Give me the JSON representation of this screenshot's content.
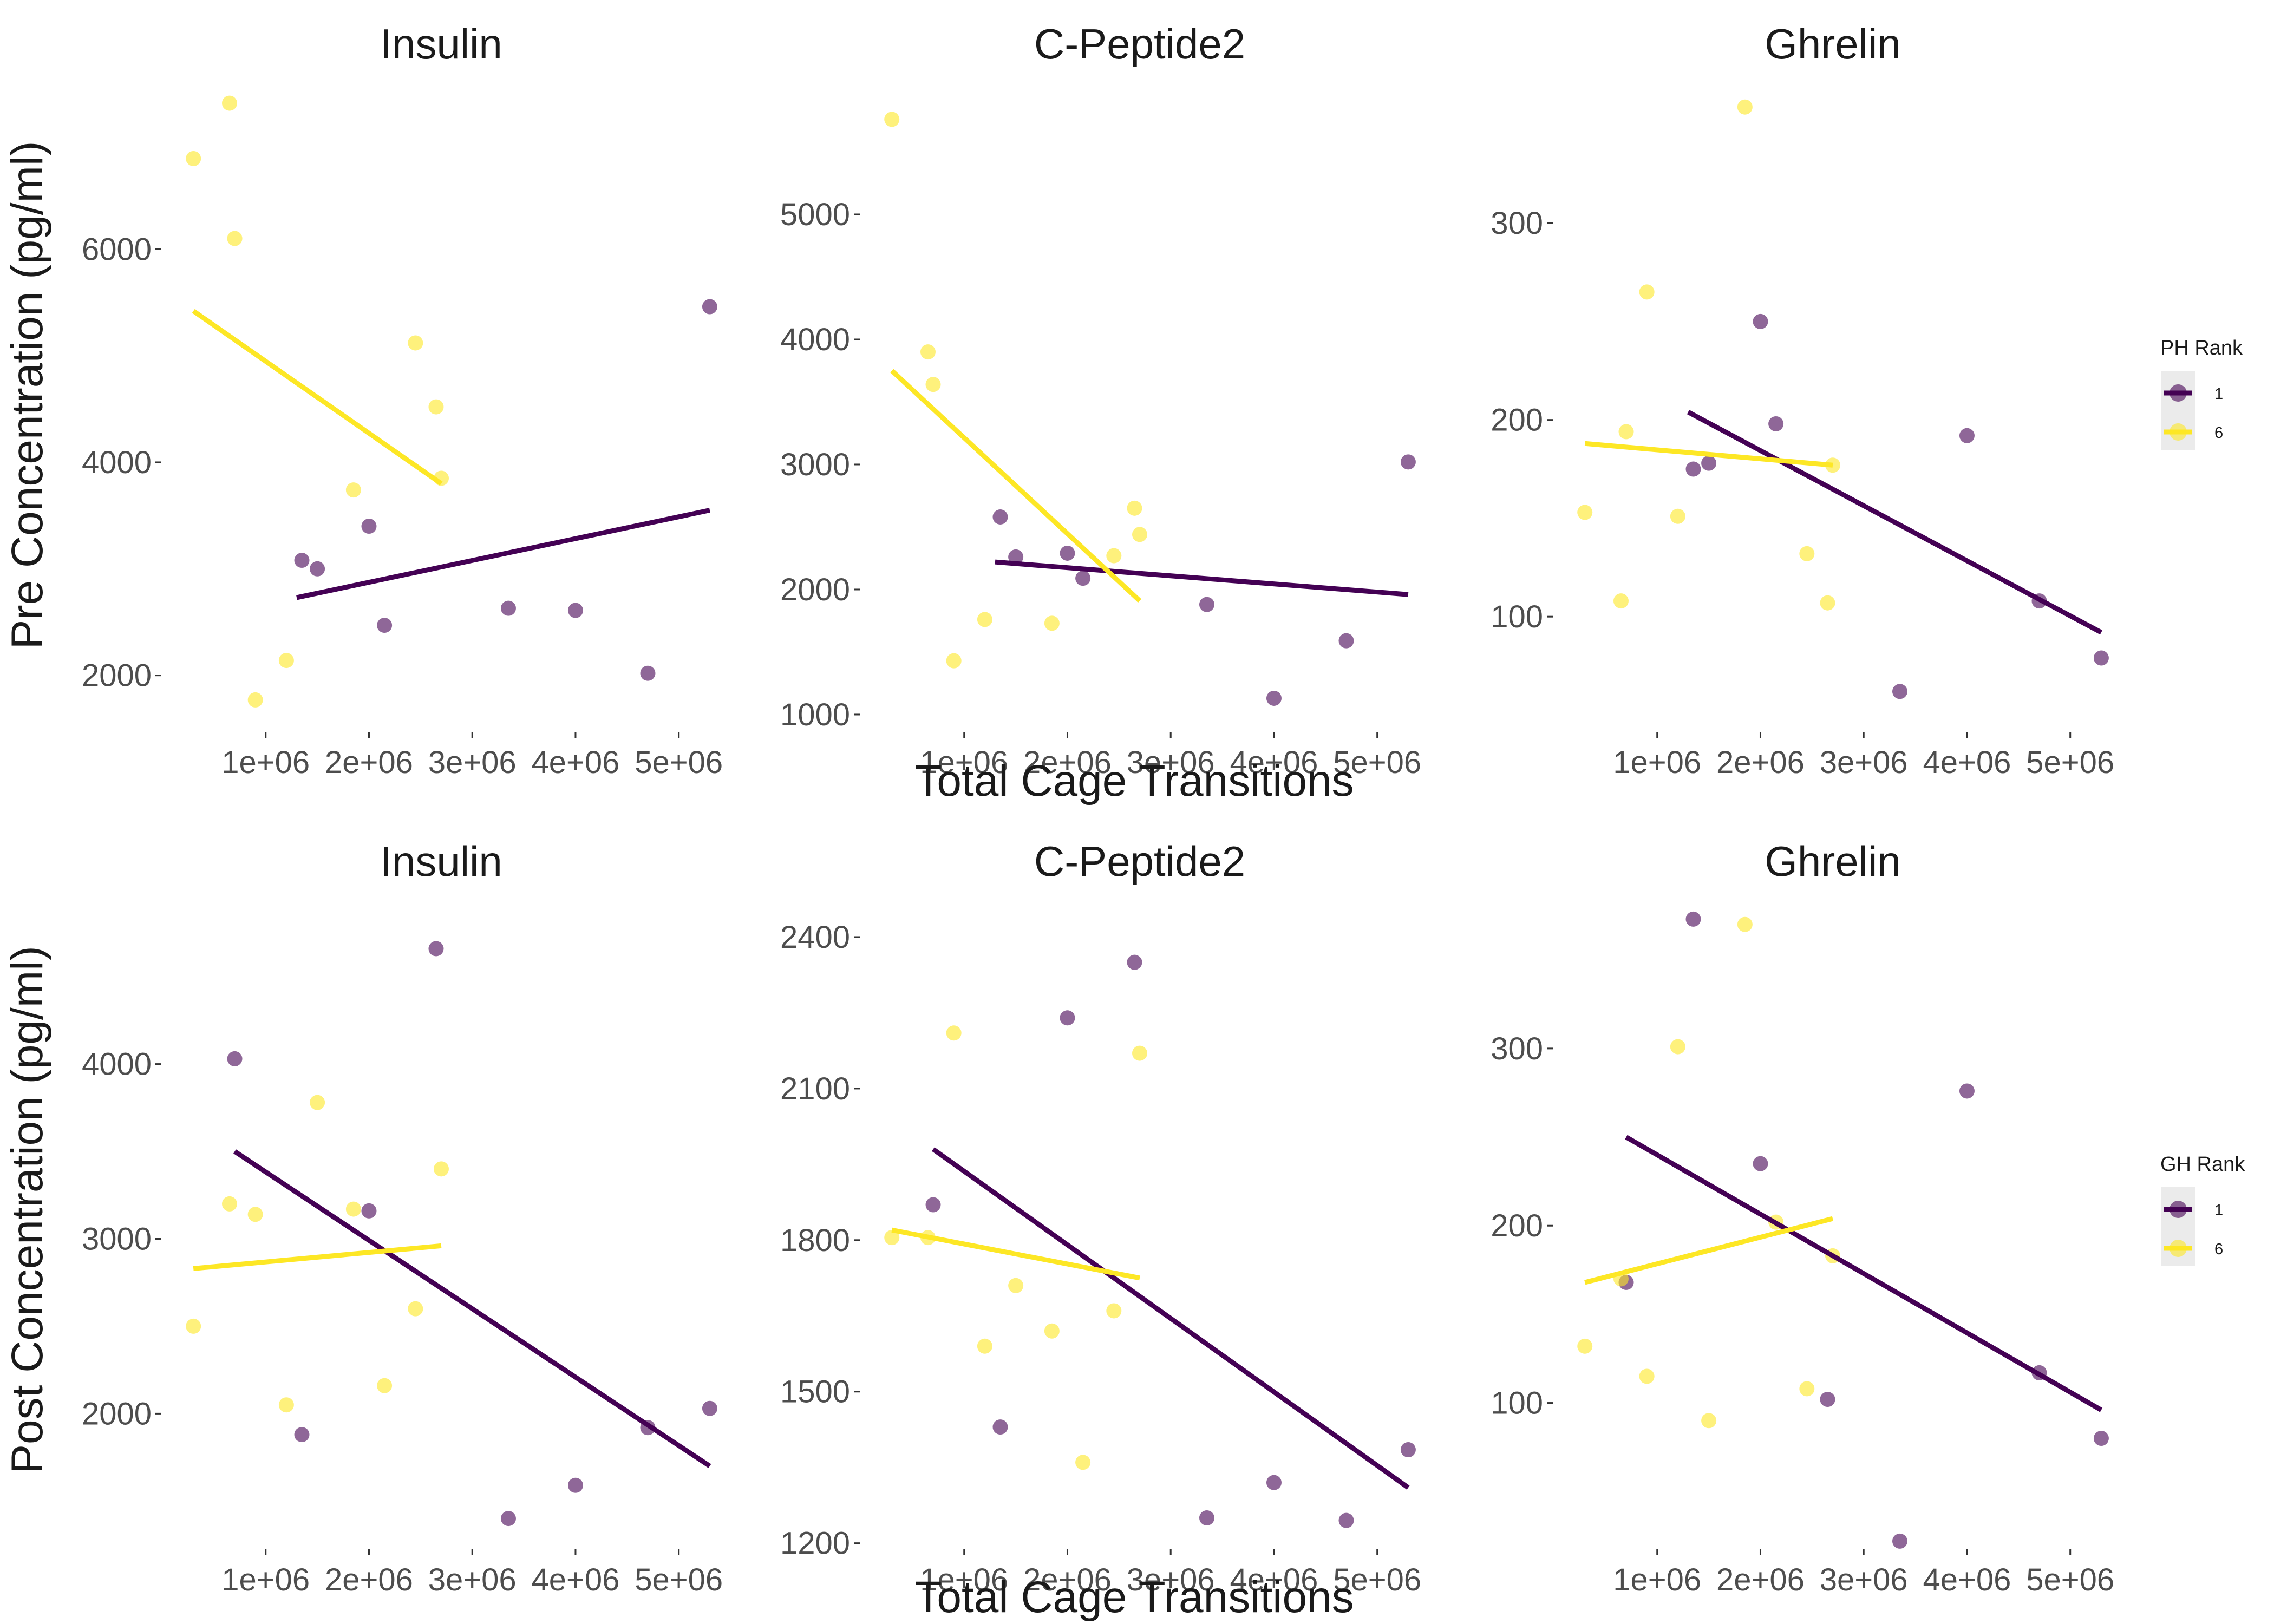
{
  "colors": {
    "rank_1": "#440154",
    "rank_6": "#FDE725"
  },
  "axis_labels": {
    "y_top": "Pre Concentration (pg/ml)",
    "y_bottom": "Post Concentration (pg/ml)",
    "x_top": "Total Cage Transitions",
    "x_bottom": "Total Cage Transitions"
  },
  "legends": [
    {
      "title": "PH Rank",
      "items": [
        {
          "label": "1",
          "color": "#440154"
        },
        {
          "label": "6",
          "color": "#FDE725"
        }
      ]
    },
    {
      "title": "GH Rank",
      "items": [
        {
          "label": "1",
          "color": "#440154"
        },
        {
          "label": "6",
          "color": "#FDE725"
        }
      ]
    }
  ],
  "chart_data": [
    {
      "type": "scatter",
      "title": "Insulin",
      "xlabel": "",
      "ylabel": "Pre Concentration (pg/ml)",
      "xlim": [
        0,
        5400000
      ],
      "ylim": [
        1480,
        7500
      ],
      "x_ticks": [
        1000000,
        2000000,
        3000000,
        4000000,
        5000000
      ],
      "x_tick_labels": [
        "1e+06",
        "2e+06",
        "3e+06",
        "4e+06",
        "5e+06"
      ],
      "y_ticks": [
        2000,
        4000,
        6000
      ],
      "y_tick_labels": [
        "2000",
        "4000",
        "6000"
      ],
      "legend_title": "PH Rank",
      "series": [
        {
          "name": "1",
          "color": "#440154",
          "points": [
            [
              1350000,
              3080
            ],
            [
              1500000,
              3000
            ],
            [
              2000000,
              3400
            ],
            [
              2150000,
              2470
            ],
            [
              3350000,
              2630
            ],
            [
              4000000,
              2610
            ],
            [
              4700000,
              2020
            ],
            [
              5300000,
              5460
            ]
          ],
          "trend": [
            [
              1300000,
              2730
            ],
            [
              5300000,
              3550
            ]
          ]
        },
        {
          "name": "6",
          "color": "#FDE725",
          "points": [
            [
              300000,
              6850
            ],
            [
              650000,
              7370
            ],
            [
              700000,
              6100
            ],
            [
              900000,
              1770
            ],
            [
              1200000,
              2140
            ],
            [
              1850000,
              3740
            ],
            [
              2450000,
              5120
            ],
            [
              2650000,
              4520
            ],
            [
              2700000,
              3850
            ]
          ],
          "trend": [
            [
              300000,
              5420
            ],
            [
              2700000,
              3800
            ]
          ]
        }
      ]
    },
    {
      "type": "scatter",
      "title": "C-Peptide2",
      "xlabel": "Total Cage Transitions",
      "ylabel": "",
      "xlim": [
        0,
        5400000
      ],
      "ylim": [
        870,
        6000
      ],
      "x_ticks": [
        1000000,
        2000000,
        3000000,
        4000000,
        5000000
      ],
      "x_tick_labels": [
        "1e+06",
        "2e+06",
        "3e+06",
        "4e+06",
        "5e+06"
      ],
      "y_ticks": [
        1000,
        2000,
        3000,
        4000,
        5000
      ],
      "y_tick_labels": [
        "1000",
        "2000",
        "3000",
        "4000",
        "5000"
      ],
      "legend_title": "PH Rank",
      "series": [
        {
          "name": "1",
          "color": "#440154",
          "points": [
            [
              1350000,
              2580
            ],
            [
              1500000,
              2260
            ],
            [
              2000000,
              2290
            ],
            [
              2150000,
              2090
            ],
            [
              3350000,
              1880
            ],
            [
              4000000,
              1130
            ],
            [
              4700000,
              1590
            ],
            [
              5300000,
              3020
            ]
          ],
          "trend": [
            [
              1300000,
              2220
            ],
            [
              5300000,
              1960
            ]
          ]
        },
        {
          "name": "6",
          "color": "#FDE725",
          "points": [
            [
              300000,
              5760
            ],
            [
              650000,
              3900
            ],
            [
              700000,
              3640
            ],
            [
              900000,
              1430
            ],
            [
              1200000,
              1760
            ],
            [
              1850000,
              1730
            ],
            [
              2450000,
              2270
            ],
            [
              2650000,
              2650
            ],
            [
              2700000,
              2440
            ]
          ],
          "trend": [
            [
              300000,
              3750
            ],
            [
              2700000,
              1910
            ]
          ]
        }
      ]
    },
    {
      "type": "scatter",
      "title": "Ghrelin",
      "xlabel": "",
      "ylabel": "",
      "xlim": [
        0,
        5400000
      ],
      "ylim": [
        42,
        368
      ],
      "x_ticks": [
        1000000,
        2000000,
        3000000,
        4000000,
        5000000
      ],
      "x_tick_labels": [
        "1e+06",
        "2e+06",
        "3e+06",
        "4e+06",
        "5e+06"
      ],
      "y_ticks": [
        100,
        200,
        300
      ],
      "y_tick_labels": [
        "100",
        "200",
        "300"
      ],
      "legend_title": "PH Rank",
      "series": [
        {
          "name": "1",
          "color": "#440154",
          "points": [
            [
              1350000,
              175
            ],
            [
              1500000,
              178
            ],
            [
              2000000,
              250
            ],
            [
              2150000,
              198
            ],
            [
              3350000,
              62
            ],
            [
              4000000,
              192
            ],
            [
              4700000,
              108
            ],
            [
              5300000,
              79
            ]
          ],
          "trend": [
            [
              1300000,
              204
            ],
            [
              5300000,
              92
            ]
          ]
        },
        {
          "name": "6",
          "color": "#FDE725",
          "points": [
            [
              300000,
              153
            ],
            [
              650000,
              108
            ],
            [
              700000,
              194
            ],
            [
              900000,
              265
            ],
            [
              1200000,
              151
            ],
            [
              1850000,
              359
            ],
            [
              2450000,
              132
            ],
            [
              2650000,
              107
            ],
            [
              2700000,
              177
            ]
          ],
          "trend": [
            [
              300000,
              188
            ],
            [
              2700000,
              177
            ]
          ]
        }
      ]
    },
    {
      "type": "scatter",
      "title": "Insulin",
      "xlabel": "",
      "ylabel": "Post Concentration (pg/ml)",
      "xlim": [
        0,
        5400000
      ],
      "ylim": [
        1230,
        4900
      ],
      "x_ticks": [
        1000000,
        2000000,
        3000000,
        4000000,
        5000000
      ],
      "x_tick_labels": [
        "1e+06",
        "2e+06",
        "3e+06",
        "4e+06",
        "5e+06"
      ],
      "y_ticks": [
        2000,
        3000,
        4000
      ],
      "y_tick_labels": [
        "2000",
        "3000",
        "4000"
      ],
      "legend_title": "GH Rank",
      "series": [
        {
          "name": "1",
          "color": "#440154",
          "points": [
            [
              700000,
              4030
            ],
            [
              1350000,
              1880
            ],
            [
              2000000,
              3160
            ],
            [
              2650000,
              4660
            ],
            [
              3350000,
              1400
            ],
            [
              4000000,
              1590
            ],
            [
              4700000,
              1920
            ],
            [
              5300000,
              2030
            ]
          ],
          "trend": [
            [
              700000,
              3500
            ],
            [
              5300000,
              1700
            ]
          ]
        },
        {
          "name": "6",
          "color": "#FDE725",
          "points": [
            [
              300000,
              2500
            ],
            [
              650000,
              3200
            ],
            [
              900000,
              3140
            ],
            [
              1200000,
              2050
            ],
            [
              1500000,
              3780
            ],
            [
              1850000,
              3170
            ],
            [
              2150000,
              2160
            ],
            [
              2450000,
              2600
            ],
            [
              2700000,
              3400
            ]
          ],
          "trend": [
            [
              300000,
              2830
            ],
            [
              2700000,
              2960
            ]
          ]
        }
      ]
    },
    {
      "type": "scatter",
      "title": "C-Peptide2",
      "xlabel": "Total Cage Transitions",
      "ylabel": "",
      "xlim": [
        0,
        5400000
      ],
      "ylim": [
        1190,
        2460
      ],
      "x_ticks": [
        1000000,
        2000000,
        3000000,
        4000000,
        5000000
      ],
      "x_tick_labels": [
        "1e+06",
        "2e+06",
        "3e+06",
        "4e+06",
        "5e+06"
      ],
      "y_ticks": [
        1200,
        1500,
        1800,
        2100,
        2400
      ],
      "y_tick_labels": [
        "1200",
        "1500",
        "1800",
        "2100",
        "2400"
      ],
      "legend_title": "GH Rank",
      "series": [
        {
          "name": "1",
          "color": "#440154",
          "points": [
            [
              700000,
              1870
            ],
            [
              1350000,
              1430
            ],
            [
              2000000,
              2240
            ],
            [
              2650000,
              2350
            ],
            [
              3350000,
              1250
            ],
            [
              4000000,
              1320
            ],
            [
              4700000,
              1245
            ],
            [
              5300000,
              1385
            ]
          ],
          "trend": [
            [
              700000,
              1980
            ],
            [
              5300000,
              1310
            ]
          ]
        },
        {
          "name": "6",
          "color": "#FDE725",
          "points": [
            [
              300000,
              1805
            ],
            [
              650000,
              1805
            ],
            [
              900000,
              2210
            ],
            [
              1200000,
              1590
            ],
            [
              1500000,
              1710
            ],
            [
              1850000,
              1620
            ],
            [
              2150000,
              1360
            ],
            [
              2450000,
              1660
            ],
            [
              2700000,
              2170
            ]
          ],
          "trend": [
            [
              300000,
              1820
            ],
            [
              2700000,
              1725
            ]
          ]
        }
      ]
    },
    {
      "type": "scatter",
      "title": "Ghrelin",
      "xlabel": "",
      "ylabel": "",
      "xlim": [
        0,
        5400000
      ],
      "ylim": [
        18,
        380
      ],
      "x_ticks": [
        1000000,
        2000000,
        3000000,
        4000000,
        5000000
      ],
      "x_tick_labels": [
        "1e+06",
        "2e+06",
        "3e+06",
        "4e+06",
        "5e+06"
      ],
      "y_ticks": [
        100,
        200,
        300
      ],
      "y_tick_labels": [
        "100",
        "200",
        "300"
      ],
      "legend_title": "GH Rank",
      "series": [
        {
          "name": "1",
          "color": "#440154",
          "points": [
            [
              700000,
              168
            ],
            [
              1350000,
              373
            ],
            [
              2000000,
              235
            ],
            [
              2650000,
              102
            ],
            [
              3350000,
              22
            ],
            [
              4000000,
              276
            ],
            [
              4700000,
              117
            ],
            [
              5300000,
              80
            ]
          ],
          "trend": [
            [
              700000,
              250
            ],
            [
              5300000,
              96
            ]
          ]
        },
        {
          "name": "6",
          "color": "#FDE725",
          "points": [
            [
              300000,
              132
            ],
            [
              650000,
              170
            ],
            [
              900000,
              115
            ],
            [
              1200000,
              301
            ],
            [
              1500000,
              90
            ],
            [
              1850000,
              370
            ],
            [
              2150000,
              202
            ],
            [
              2450000,
              108
            ],
            [
              2700000,
              183
            ]
          ],
          "trend": [
            [
              300000,
              168
            ],
            [
              2700000,
              204
            ]
          ]
        }
      ]
    }
  ]
}
